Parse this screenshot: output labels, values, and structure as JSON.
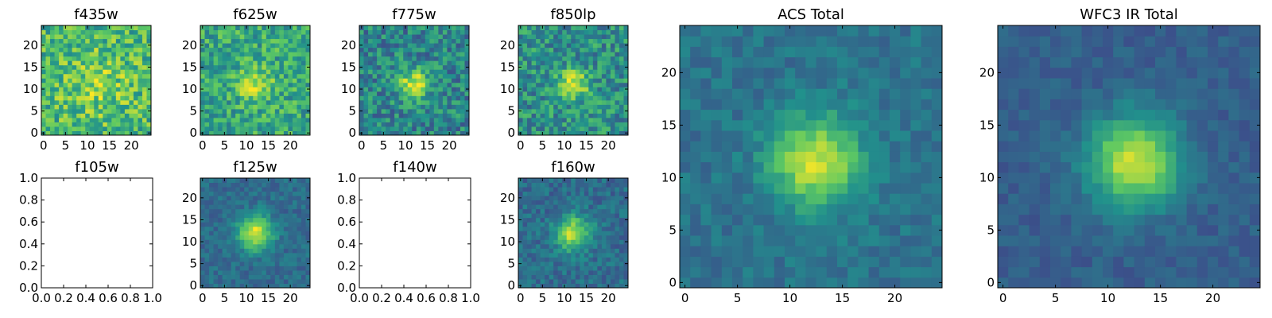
{
  "chart_data": [
    {
      "type": "heatmap",
      "title": "f435w",
      "empty": false,
      "grid_size": 25,
      "peak": [
        12,
        11
      ],
      "sigma": 6,
      "amplitude": 0.15,
      "background": 0.65,
      "noise": 0.45,
      "xticks": [
        "0",
        "5",
        "10",
        "15",
        "20"
      ],
      "yticks": [
        "0",
        "5",
        "10",
        "15",
        "20"
      ]
    },
    {
      "type": "heatmap",
      "title": "f625w",
      "empty": false,
      "grid_size": 25,
      "peak": [
        12,
        11
      ],
      "sigma": 2.5,
      "amplitude": 0.35,
      "background": 0.6,
      "noise": 0.4,
      "xticks": [
        "0",
        "5",
        "10",
        "15",
        "20"
      ],
      "yticks": [
        "0",
        "5",
        "10",
        "15",
        "20"
      ]
    },
    {
      "type": "heatmap",
      "title": "f775w",
      "empty": false,
      "grid_size": 25,
      "peak": [
        12,
        11
      ],
      "sigma": 2.5,
      "amplitude": 0.5,
      "background": 0.45,
      "noise": 0.4,
      "xticks": [
        "0",
        "5",
        "10",
        "15",
        "20"
      ],
      "yticks": [
        "0",
        "5",
        "10",
        "15",
        "20"
      ]
    },
    {
      "type": "heatmap",
      "title": "f850lp",
      "empty": false,
      "grid_size": 25,
      "peak": [
        12,
        11
      ],
      "sigma": 2.5,
      "amplitude": 0.45,
      "background": 0.5,
      "noise": 0.4,
      "xticks": [
        "0",
        "5",
        "10",
        "15",
        "20"
      ],
      "yticks": [
        "0",
        "5",
        "10",
        "15",
        "20"
      ]
    },
    {
      "type": "heatmap",
      "title": "f105w",
      "empty": true,
      "xticks": [
        "0.0",
        "0.2",
        "0.4",
        "0.6",
        "0.8",
        "1.0"
      ],
      "yticks": [
        "0.0",
        "0.2",
        "0.4",
        "0.6",
        "0.8",
        "1.0"
      ]
    },
    {
      "type": "heatmap",
      "title": "f125w",
      "empty": false,
      "grid_size": 25,
      "peak": [
        12,
        12
      ],
      "sigma": 2.8,
      "amplitude": 0.6,
      "background": 0.35,
      "noise": 0.18,
      "xticks": [
        "0",
        "5",
        "10",
        "15",
        "20"
      ],
      "yticks": [
        "0",
        "5",
        "10",
        "15",
        "20"
      ]
    },
    {
      "type": "heatmap",
      "title": "f140w",
      "empty": true,
      "xticks": [
        "0.0",
        "0.2",
        "0.4",
        "0.6",
        "0.8",
        "1.0"
      ],
      "yticks": [
        "0.0",
        "0.2",
        "0.4",
        "0.6",
        "0.8",
        "1.0"
      ]
    },
    {
      "type": "heatmap",
      "title": "f160w",
      "empty": false,
      "grid_size": 25,
      "peak": [
        12,
        12
      ],
      "sigma": 2.8,
      "amplitude": 0.55,
      "background": 0.35,
      "noise": 0.22,
      "xticks": [
        "0",
        "5",
        "10",
        "15",
        "20"
      ],
      "yticks": [
        "0",
        "5",
        "10",
        "15",
        "20"
      ]
    },
    {
      "type": "heatmap",
      "title": "ACS Total",
      "empty": false,
      "grid_size": 25,
      "peak": [
        12.5,
        11.5
      ],
      "sigma": 3,
      "amplitude": 0.55,
      "background": 0.38,
      "noise": 0.16,
      "xticks": [
        "0",
        "5",
        "10",
        "15",
        "20"
      ],
      "yticks": [
        "0",
        "5",
        "10",
        "15",
        "20"
      ]
    },
    {
      "type": "heatmap",
      "title": "WFC3 IR Total",
      "empty": false,
      "grid_size": 25,
      "peak": [
        12.5,
        11.5
      ],
      "sigma": 3,
      "amplitude": 0.65,
      "background": 0.3,
      "noise": 0.12,
      "xticks": [
        "0",
        "5",
        "10",
        "15",
        "20"
      ],
      "yticks": [
        "0",
        "5",
        "10",
        "15",
        "20"
      ]
    }
  ],
  "colors": {
    "colormap": [
      "#440154",
      "#3b528b",
      "#21918c",
      "#5ec962",
      "#fde725"
    ],
    "frame": "#000000",
    "background": "#ffffff"
  }
}
